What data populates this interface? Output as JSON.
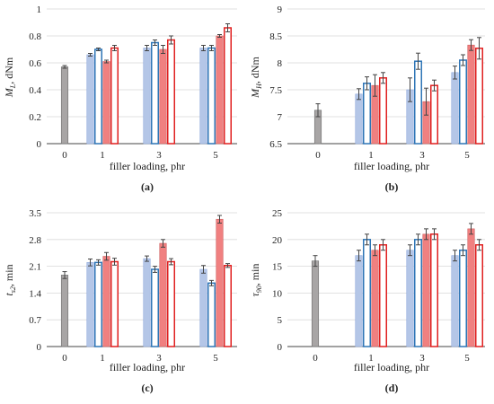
{
  "colors": {
    "control": "#a8a5a5",
    "blue_filled": "#b4c6e7",
    "blue_outline": "#2e75b6",
    "red_filled": "#f08080",
    "red_outline": "#e02020"
  },
  "chart_data": [
    {
      "panel": "(a)",
      "type": "bar",
      "ylabel_main": "M",
      "ylabel_sub": "L",
      "ylabel_unit": ", dNm",
      "xlabel": "filler loading, phr",
      "categories": [
        "0",
        "1",
        "3",
        "5"
      ],
      "yticks": [
        "0",
        "0.2",
        "0.4",
        "0.6",
        "0.8",
        "1"
      ],
      "ylim": [
        0,
        1
      ],
      "grid": true,
      "groups": [
        {
          "category": "0",
          "bars": [
            {
              "style": "control",
              "value": 0.57,
              "err": 0.01
            }
          ]
        },
        {
          "category": "1",
          "bars": [
            {
              "style": "blue_filled",
              "value": 0.66,
              "err": 0.01
            },
            {
              "style": "blue_outline",
              "value": 0.7,
              "err": 0.01
            },
            {
              "style": "red_filled",
              "value": 0.61,
              "err": 0.01
            },
            {
              "style": "red_outline",
              "value": 0.71,
              "err": 0.02
            }
          ]
        },
        {
          "category": "3",
          "bars": [
            {
              "style": "blue_filled",
              "value": 0.71,
              "err": 0.02
            },
            {
              "style": "blue_outline",
              "value": 0.75,
              "err": 0.02
            },
            {
              "style": "red_filled",
              "value": 0.7,
              "err": 0.03
            },
            {
              "style": "red_outline",
              "value": 0.77,
              "err": 0.03
            }
          ]
        },
        {
          "category": "5",
          "bars": [
            {
              "style": "blue_filled",
              "value": 0.71,
              "err": 0.02
            },
            {
              "style": "blue_outline",
              "value": 0.71,
              "err": 0.02
            },
            {
              "style": "red_filled",
              "value": 0.8,
              "err": 0.01
            },
            {
              "style": "red_outline",
              "value": 0.86,
              "err": 0.03
            }
          ]
        }
      ]
    },
    {
      "panel": "(b)",
      "type": "bar",
      "ylabel_main": "M",
      "ylabel_sub": "H",
      "ylabel_unit": ", dNm",
      "xlabel": "filler loading, phr",
      "categories": [
        "0",
        "1",
        "3",
        "5"
      ],
      "yticks": [
        "6.5",
        "7",
        "7.5",
        "8",
        "8.5",
        "9"
      ],
      "ylim": [
        6.5,
        9
      ],
      "grid": true,
      "groups": [
        {
          "category": "0",
          "bars": [
            {
              "style": "control",
              "value": 7.12,
              "err": 0.12
            }
          ]
        },
        {
          "category": "1",
          "bars": [
            {
              "style": "blue_filled",
              "value": 7.42,
              "err": 0.1
            },
            {
              "style": "blue_outline",
              "value": 7.62,
              "err": 0.12
            },
            {
              "style": "red_filled",
              "value": 7.58,
              "err": 0.2
            },
            {
              "style": "red_outline",
              "value": 7.72,
              "err": 0.1
            }
          ]
        },
        {
          "category": "3",
          "bars": [
            {
              "style": "blue_filled",
              "value": 7.5,
              "err": 0.22
            },
            {
              "style": "blue_outline",
              "value": 8.03,
              "err": 0.15
            },
            {
              "style": "red_filled",
              "value": 7.28,
              "err": 0.25
            },
            {
              "style": "red_outline",
              "value": 7.58,
              "err": 0.1
            }
          ]
        },
        {
          "category": "5",
          "bars": [
            {
              "style": "blue_filled",
              "value": 7.82,
              "err": 0.12
            },
            {
              "style": "blue_outline",
              "value": 8.05,
              "err": 0.1
            },
            {
              "style": "red_filled",
              "value": 8.33,
              "err": 0.1
            },
            {
              "style": "red_outline",
              "value": 8.27,
              "err": 0.2
            }
          ]
        }
      ]
    },
    {
      "panel": "(c)",
      "type": "bar",
      "ylabel_main": "t",
      "ylabel_sub": "s2",
      "ylabel_unit": ", min",
      "xlabel": "filler loading, phr",
      "categories": [
        "0",
        "1",
        "3",
        "5"
      ],
      "yticks": [
        "0",
        "0.7",
        "1.4",
        "2.1",
        "2.8",
        "3.5"
      ],
      "ylim": [
        0,
        3.5
      ],
      "grid": true,
      "groups": [
        {
          "category": "0",
          "bars": [
            {
              "style": "control",
              "value": 1.87,
              "err": 0.09
            }
          ]
        },
        {
          "category": "1",
          "bars": [
            {
              "style": "blue_filled",
              "value": 2.2,
              "err": 0.09
            },
            {
              "style": "blue_outline",
              "value": 2.2,
              "err": 0.07
            },
            {
              "style": "red_filled",
              "value": 2.36,
              "err": 0.1
            },
            {
              "style": "red_outline",
              "value": 2.22,
              "err": 0.09
            }
          ]
        },
        {
          "category": "3",
          "bars": [
            {
              "style": "blue_filled",
              "value": 2.3,
              "err": 0.07
            },
            {
              "style": "blue_outline",
              "value": 2.02,
              "err": 0.08
            },
            {
              "style": "red_filled",
              "value": 2.7,
              "err": 0.1
            },
            {
              "style": "red_outline",
              "value": 2.22,
              "err": 0.08
            }
          ]
        },
        {
          "category": "5",
          "bars": [
            {
              "style": "blue_filled",
              "value": 2.02,
              "err": 0.1
            },
            {
              "style": "blue_outline",
              "value": 1.66,
              "err": 0.07
            },
            {
              "style": "red_filled",
              "value": 3.33,
              "err": 0.1
            },
            {
              "style": "red_outline",
              "value": 2.12,
              "err": 0.05
            }
          ]
        }
      ]
    },
    {
      "panel": "(d)",
      "type": "bar",
      "ylabel_main": "τ",
      "ylabel_sub": "90",
      "ylabel_unit": ", min",
      "xlabel": "filler loading, phr",
      "categories": [
        "0",
        "1",
        "3",
        "5"
      ],
      "yticks": [
        "0",
        "5",
        "10",
        "15",
        "20",
        "25"
      ],
      "ylim": [
        0,
        25
      ],
      "grid": true,
      "groups": [
        {
          "category": "0",
          "bars": [
            {
              "style": "control",
              "value": 16,
              "err": 1
            }
          ]
        },
        {
          "category": "1",
          "bars": [
            {
              "style": "blue_filled",
              "value": 17,
              "err": 1
            },
            {
              "style": "blue_outline",
              "value": 20,
              "err": 1
            },
            {
              "style": "red_filled",
              "value": 18,
              "err": 1
            },
            {
              "style": "red_outline",
              "value": 19,
              "err": 1
            }
          ]
        },
        {
          "category": "3",
          "bars": [
            {
              "style": "blue_filled",
              "value": 18,
              "err": 1
            },
            {
              "style": "blue_outline",
              "value": 20,
              "err": 1
            },
            {
              "style": "red_filled",
              "value": 21,
              "err": 1
            },
            {
              "style": "red_outline",
              "value": 21,
              "err": 1
            }
          ]
        },
        {
          "category": "5",
          "bars": [
            {
              "style": "blue_filled",
              "value": 17,
              "err": 1
            },
            {
              "style": "blue_outline",
              "value": 18,
              "err": 1
            },
            {
              "style": "red_filled",
              "value": 22,
              "err": 1
            },
            {
              "style": "red_outline",
              "value": 19,
              "err": 1
            }
          ]
        }
      ]
    }
  ]
}
